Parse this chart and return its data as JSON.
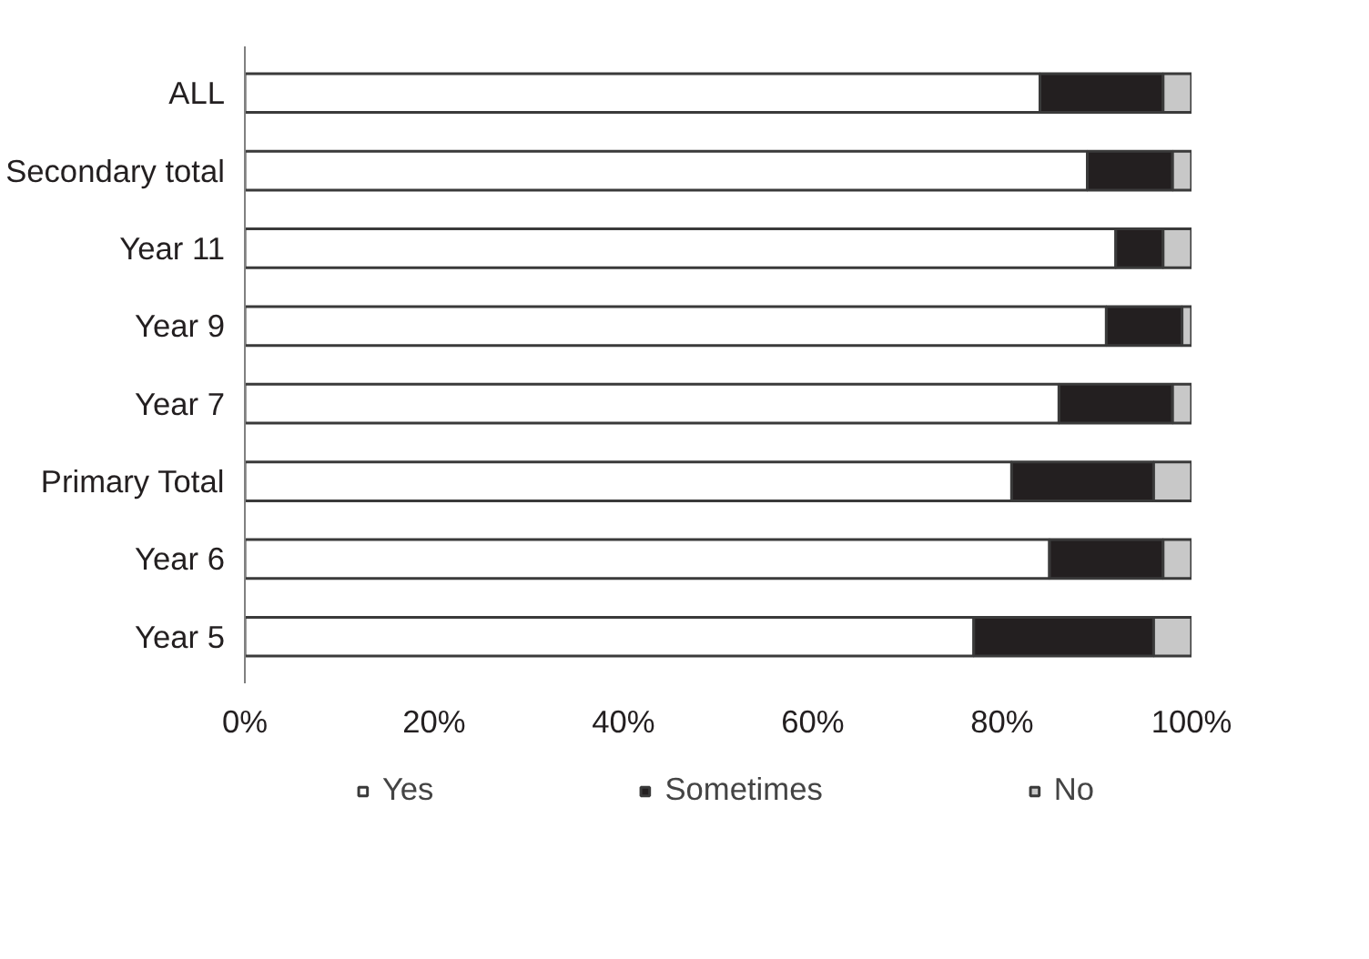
{
  "chart_data": {
    "type": "bar",
    "orientation": "horizontal",
    "stacked": true,
    "categories": [
      "ALL",
      "Secondary total",
      "Year 11",
      "Year 9",
      "Year 7",
      "Primary Total",
      "Year 6",
      "Year 5"
    ],
    "series": [
      {
        "name": "Yes",
        "color": "#ffffff",
        "values": [
          84,
          89,
          92,
          91,
          86,
          81,
          85,
          77
        ]
      },
      {
        "name": "Sometimes",
        "color": "#231f20",
        "values": [
          13,
          9,
          5,
          8,
          12,
          15,
          12,
          19
        ]
      },
      {
        "name": "No",
        "color": "#c8c8c8",
        "values": [
          3,
          2,
          3,
          1,
          2,
          4,
          3,
          4
        ]
      }
    ],
    "xlim": [
      0,
      100
    ],
    "xticks": [
      {
        "value": 0,
        "label": "0%"
      },
      {
        "value": 20,
        "label": "20%"
      },
      {
        "value": 40,
        "label": "40%"
      },
      {
        "value": 60,
        "label": "60%"
      },
      {
        "value": 80,
        "label": "80%"
      },
      {
        "value": 100,
        "label": "100%"
      }
    ],
    "grid": false,
    "legend": "bottom"
  }
}
